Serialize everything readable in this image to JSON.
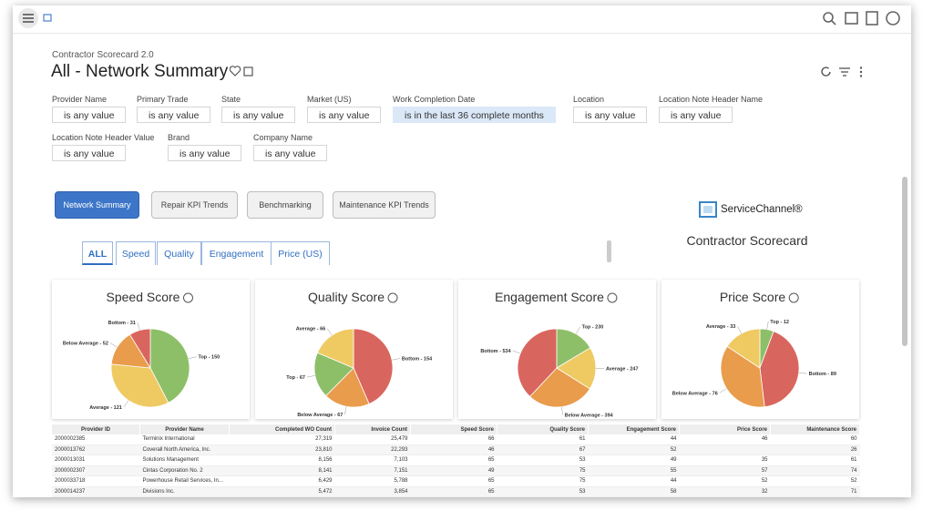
{
  "header": {
    "app_name": "Contractor Scorecard 2.0",
    "title": "All - Network Summary"
  },
  "filters": [
    {
      "label": "Provider Name",
      "value": "is any value"
    },
    {
      "label": "Primary Trade",
      "value": "is any value"
    },
    {
      "label": "State",
      "value": "is any value"
    },
    {
      "label": "Market (US)",
      "value": "is any value"
    },
    {
      "label": "Work Completion Date",
      "value": "is in the last 36 complete months"
    },
    {
      "label": "Location",
      "value": "is any value"
    },
    {
      "label": "Location Note Header Name",
      "value": "is any value"
    },
    {
      "label": "Location Note Header Value",
      "value": "is any value"
    },
    {
      "label": "Brand",
      "value": "is any value"
    },
    {
      "label": "Company Name",
      "value": "is any value"
    }
  ],
  "nav_buttons": [
    "Network Summary",
    "Repair KPI Trends",
    "Benchmarking",
    "Maintenance KPI Trends"
  ],
  "brand": {
    "logo_text": "ServiceChannel®",
    "subtitle": "Contractor Scorecard"
  },
  "tabs": [
    "ALL",
    "Speed",
    "Quality",
    "Engagement",
    "Price (US)"
  ],
  "chart_data": [
    {
      "type": "pie",
      "title": "Speed Score",
      "values": [
        150,
        121,
        52,
        31
      ],
      "value_labels": [
        "Top - 150",
        "Average - 121",
        "Below Average - 52",
        "Bottom - 31"
      ],
      "colors": [
        "#8dbf68",
        "#efca62",
        "#e89c4c",
        "#d9665e"
      ]
    },
    {
      "type": "pie",
      "title": "Quality Score",
      "values": [
        154,
        67,
        67,
        66
      ],
      "value_labels": [
        "Bottom - 154",
        "Below Average - 67",
        "Top - 67",
        "Average - 66"
      ],
      "colors": [
        "#d9665e",
        "#e89c4c",
        "#8dbf68",
        "#efca62"
      ]
    },
    {
      "type": "pie",
      "title": "Engagement Score",
      "values": [
        230,
        247,
        394,
        534
      ],
      "value_labels": [
        "Top - 230",
        "Average - 247",
        "Below Average - 394",
        "Bottom - 534"
      ],
      "colors": [
        "#8dbf68",
        "#efca62",
        "#e89c4c",
        "#d9665e"
      ]
    },
    {
      "type": "pie",
      "title": "Price Score",
      "values": [
        12,
        89,
        76,
        33
      ],
      "value_labels": [
        "Top - 12",
        "Bottom - 89",
        "Below Average - 76",
        "Average - 33"
      ],
      "colors": [
        "#8dbf68",
        "#d9665e",
        "#e89c4c",
        "#efca62"
      ]
    }
  ],
  "table": {
    "columns": [
      "Provider ID",
      "Provider Name",
      "Completed WO Count",
      "Invoice Count",
      "Speed Score",
      "Quality Score",
      "Engagement Score",
      "Price Score",
      "Maintenance Score"
    ],
    "rows": [
      [
        "2000002385",
        "Terminix International",
        "27,319",
        "25,479",
        "66",
        "61",
        "44",
        "46",
        "60"
      ],
      [
        "2000013762",
        "Coverall North America, Inc.",
        "23,810",
        "22,293",
        "46",
        "67",
        "52",
        null,
        "26"
      ],
      [
        "2000013031",
        "Solutions Management",
        "8,156",
        "7,103",
        "65",
        "53",
        "49",
        "35",
        "61"
      ],
      [
        "2000002307",
        "Cintas Corporation No. 2",
        "8,141",
        "7,151",
        "49",
        "75",
        "55",
        "57",
        "74"
      ],
      [
        "2000033718",
        "Powerhouse Retail Services, In...",
        "6,429",
        "5,788",
        "65",
        "75",
        "44",
        "52",
        "52"
      ],
      [
        "2000014237",
        "Divisions Inc.",
        "5,472",
        "3,854",
        "65",
        "53",
        "58",
        "32",
        "71"
      ]
    ]
  }
}
